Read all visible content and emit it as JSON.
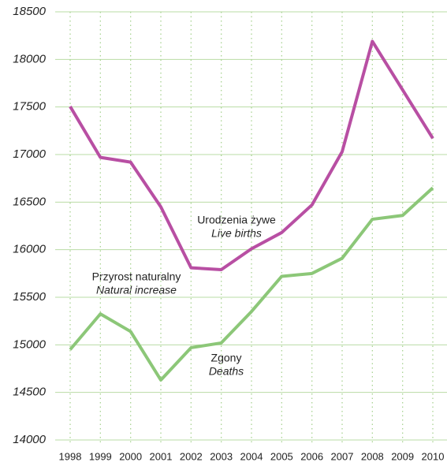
{
  "chart_data": {
    "type": "line",
    "categories": [
      "1998",
      "1999",
      "2000",
      "2001",
      "2002",
      "2003",
      "2004",
      "2005",
      "2006",
      "2007",
      "2008",
      "2009",
      "2010"
    ],
    "series": [
      {
        "name": "Urodzenia żywe",
        "color": "#b84fa3",
        "values": [
          17505,
          16970,
          16920,
          16450,
          15810,
          15790,
          16010,
          16180,
          16470,
          17030,
          18190,
          17680,
          17170
        ]
      },
      {
        "name": "Zgony",
        "color": "#8cc778",
        "values": [
          14950,
          15325,
          15140,
          14630,
          14970,
          15020,
          15350,
          15720,
          15750,
          15910,
          16320,
          16360,
          16650
        ]
      }
    ],
    "annotations": [
      {
        "text": "Urodzenia żywe",
        "subtext": "Live births"
      },
      {
        "text": "Przyrost naturalny",
        "subtext": "Natural increase"
      },
      {
        "text": "Zgony",
        "subtext": "Deaths"
      }
    ],
    "ylim": [
      14000,
      18500
    ],
    "yticks": [
      14000,
      14500,
      15000,
      15500,
      16000,
      16500,
      17000,
      17500,
      18000,
      18500
    ],
    "grid": true
  }
}
